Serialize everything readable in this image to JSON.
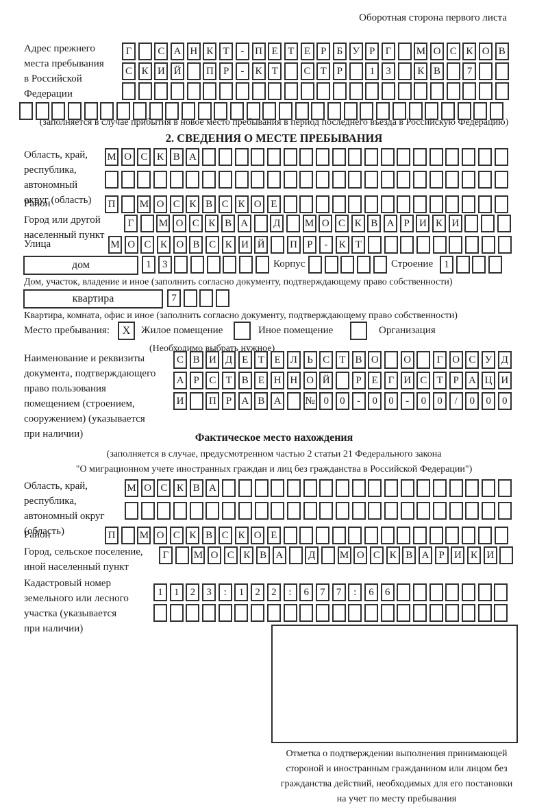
{
  "corner_note": "Оборотная сторона первого листа",
  "prev_address": {
    "label_lines": [
      "Адрес прежнего",
      "места пребывания",
      "в Российской",
      "Федерации"
    ],
    "row1": {
      "text": "Г САНКТ-ПЕТЕРБУРГ МОСКОВ",
      "len": 24
    },
    "row2": {
      "text": "СКИЙ ПР-КТ СТР 13 КВ 7",
      "len": 24
    },
    "row3": {
      "text": "",
      "len": 24
    },
    "row4": {
      "text": "",
      "len": 30
    },
    "caption": "(заполняется в случае прибытия в новое место пребывания в период последнего въезда в Российскую Федерацию)"
  },
  "section2": {
    "title": "2. СВЕДЕНИЯ О МЕСТЕ ПРЕБЫВАНИЯ",
    "region": {
      "label_lines": [
        "Область, край,",
        "республика,",
        "автономный",
        "округ (область)"
      ],
      "row1": {
        "text": "МОСКВА",
        "len": 25
      },
      "row2": {
        "text": "",
        "len": 25
      }
    },
    "district": {
      "label": "Район",
      "row": {
        "text": "П МОСКВСКОЕ",
        "len": 25
      }
    },
    "city": {
      "label_lines": [
        "Город или другой",
        "населенный пункт"
      ],
      "row": {
        "text": "Г МОСКВА Д МОСКВАРИКИ",
        "len": 24
      }
    },
    "street": {
      "label": "Улица",
      "row": {
        "text": "МОСКОВСКИЙ ПР-КТ",
        "len": 25
      }
    },
    "house": {
      "box_label": "дом",
      "cells": {
        "text": "13",
        "len": 8
      },
      "korpus_label": "Корпус",
      "korpus_cells": {
        "text": "",
        "len": 5
      },
      "stroenie_label": "Строение",
      "stroenie_cells": {
        "text": "1",
        "len": 4
      },
      "caption": "Дом, участок, владение и иное (заполнить согласно документу, подтверждающему право собственности)"
    },
    "apartment": {
      "box_label": "квартира",
      "cells": {
        "text": "7",
        "len": 4
      },
      "caption": "Квартира, комната, офис и иное (заполнить согласно документу, подтверждающему право собственности)"
    },
    "stay_type": {
      "label": "Место пребывания:",
      "options": [
        {
          "label": "Жилое помещение",
          "mark": "X"
        },
        {
          "label": "Иное помещение",
          "mark": ""
        },
        {
          "label": "Организация",
          "mark": ""
        }
      ],
      "note": "(Необходимо выбрать нужное)"
    },
    "document": {
      "label_lines": [
        "Наименование и реквизиты",
        "документа, подтверждающего",
        "право пользования",
        "помещением (строением,",
        "сооружением) (указывается",
        "при наличии)"
      ],
      "row1": {
        "text": "СВИДЕТЕЛЬСТВО О ГОСУД",
        "len": 21
      },
      "row2": {
        "text": "АРСТВЕННОЙ РЕГИСТРАЦИ",
        "len": 21
      },
      "row3": {
        "text": "И ПРАВА №00-00-00/000",
        "len": 21
      }
    }
  },
  "actual": {
    "title": "Фактическое место нахождения",
    "caption_lines": [
      "(заполняется в случае, предусмотренном частью 2 статьи 21 Федерального закона",
      "\"О миграционном учете иностранных граждан и лиц без гражданства в Российской Федерации\")"
    ],
    "region": {
      "label_lines": [
        "Область, край,",
        "республика,",
        "автономный округ",
        "(область)"
      ],
      "row1": {
        "text": "МОСКВА",
        "len": 24
      },
      "row2": {
        "text": "",
        "len": 24
      }
    },
    "district": {
      "label": "Район",
      "row": {
        "text": "П МОСКВСКОЕ",
        "len": 25
      }
    },
    "city": {
      "label_lines": [
        "Город, сельское поселение,",
        "иной населенный пункт"
      ],
      "row": {
        "text": "Г МОСКВА Д МОСКВАРИКИ",
        "len": 22
      }
    },
    "cadastral": {
      "label_lines": [
        "Кадастровый номер",
        "земельного или лесного",
        "участка (указывается",
        "при наличии)"
      ],
      "row1": {
        "text": "1123:122:677:66",
        "len": 22
      },
      "row2": {
        "text": "",
        "len": 22
      }
    }
  },
  "stamp": {
    "caption_lines": [
      "Отметка о подтверждении выполнения принимающей",
      "стороной и иностранным гражданином или лицом без",
      "гражданства действий, необходимых для его постановки",
      "на учет по месту пребывания"
    ]
  }
}
